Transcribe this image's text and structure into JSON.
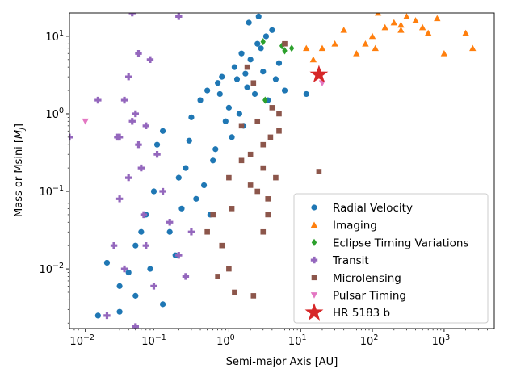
{
  "chart_data": {
    "type": "scatter",
    "xlabel": "Semi-major Axis [AU]",
    "ylabel": "Mass or Msini [",
    "ylabel_unit": "M",
    "ylabel_sub": "J",
    "ylabel_close": "]",
    "x_scale": "log",
    "y_scale": "log",
    "xlim": [
      0.006,
      5000
    ],
    "ylim": [
      0.0017,
      20
    ],
    "x_ticks": [
      {
        "exp": "−2",
        "value": 0.01
      },
      {
        "exp": "−1",
        "value": 0.1
      },
      {
        "exp": "0",
        "value": 1
      },
      {
        "exp": "1",
        "value": 10
      },
      {
        "exp": "2",
        "value": 100
      },
      {
        "exp": "3",
        "value": 1000
      }
    ],
    "y_ticks": [
      {
        "exp": "−2",
        "value": 0.01
      },
      {
        "exp": "−1",
        "value": 0.1
      },
      {
        "exp": "0",
        "value": 1
      },
      {
        "exp": "1",
        "value": 10
      }
    ],
    "tick_base": "10",
    "legend_position": "lower right",
    "series": [
      {
        "name": "Radial Velocity",
        "marker": "circle",
        "color": "#1f77b4",
        "points": [
          [
            0.015,
            0.0025
          ],
          [
            0.02,
            0.012
          ],
          [
            0.03,
            0.006
          ],
          [
            0.04,
            0.009
          ],
          [
            0.05,
            0.02
          ],
          [
            0.06,
            0.03
          ],
          [
            0.07,
            0.05
          ],
          [
            0.1,
            0.4
          ],
          [
            0.12,
            0.6
          ],
          [
            0.2,
            0.15
          ],
          [
            0.25,
            0.2
          ],
          [
            0.3,
            0.9
          ],
          [
            0.4,
            1.5
          ],
          [
            0.5,
            2.0
          ],
          [
            0.6,
            0.25
          ],
          [
            0.7,
            2.5
          ],
          [
            0.8,
            3.0
          ],
          [
            1.0,
            1.2
          ],
          [
            1.2,
            4.0
          ],
          [
            1.5,
            6.0
          ],
          [
            1.8,
            2.2
          ],
          [
            2.0,
            5.0
          ],
          [
            2.3,
            1.8
          ],
          [
            2.5,
            8.0
          ],
          [
            3.0,
            3.5
          ],
          [
            3.5,
            1.5
          ],
          [
            4.0,
            12.0
          ],
          [
            4.5,
            2.8
          ],
          [
            5.0,
            4.5
          ],
          [
            6.0,
            2.0
          ],
          [
            0.9,
            0.8
          ],
          [
            1.1,
            0.5
          ],
          [
            1.4,
            1.0
          ],
          [
            1.6,
            0.7
          ],
          [
            0.35,
            0.08
          ],
          [
            0.45,
            0.12
          ],
          [
            0.55,
            0.05
          ],
          [
            0.15,
            0.03
          ],
          [
            0.18,
            0.015
          ],
          [
            0.08,
            0.01
          ],
          [
            0.09,
            0.1
          ],
          [
            0.22,
            0.06
          ],
          [
            1.3,
            2.8
          ],
          [
            1.7,
            3.3
          ],
          [
            2.8,
            7.0
          ],
          [
            3.3,
            10.0
          ],
          [
            0.65,
            0.35
          ],
          [
            0.75,
            1.8
          ],
          [
            12.0,
            1.8
          ],
          [
            1.9,
            15.0
          ],
          [
            2.6,
            18.0
          ],
          [
            0.28,
            0.45
          ],
          [
            0.12,
            0.0035
          ],
          [
            0.05,
            0.0045
          ],
          [
            0.03,
            0.0028
          ]
        ]
      },
      {
        "name": "Imaging",
        "marker": "triangle-up",
        "color": "#ff7f0e",
        "points": [
          [
            12,
            7.0
          ],
          [
            15,
            5.0
          ],
          [
            20,
            7.0
          ],
          [
            30,
            8.0
          ],
          [
            40,
            12
          ],
          [
            60,
            6.0
          ],
          [
            80,
            8.0
          ],
          [
            100,
            10
          ],
          [
            120,
            20
          ],
          [
            150,
            13
          ],
          [
            200,
            15
          ],
          [
            250,
            12
          ],
          [
            300,
            18
          ],
          [
            400,
            16
          ],
          [
            500,
            13
          ],
          [
            600,
            11
          ],
          [
            800,
            17
          ],
          [
            1000,
            6.0
          ],
          [
            2000,
            11
          ],
          [
            2500,
            7.0
          ],
          [
            110,
            7.0
          ],
          [
            250,
            14
          ]
        ]
      },
      {
        "name": "Eclipse Timing Variations",
        "marker": "diamond",
        "color": "#2ca02c",
        "points": [
          [
            3.0,
            8.5
          ],
          [
            5.5,
            7.5
          ],
          [
            6.0,
            6.5
          ],
          [
            7.5,
            7.0
          ],
          [
            3.2,
            1.5
          ]
        ]
      },
      {
        "name": "Transit",
        "marker": "plus",
        "color": "#9467bd",
        "points": [
          [
            0.006,
            0.5
          ],
          [
            0.015,
            1.5
          ],
          [
            0.02,
            0.0025
          ],
          [
            0.025,
            0.02
          ],
          [
            0.03,
            0.5
          ],
          [
            0.035,
            1.5
          ],
          [
            0.04,
            3.0
          ],
          [
            0.045,
            0.8
          ],
          [
            0.05,
            1.0
          ],
          [
            0.055,
            0.4
          ],
          [
            0.06,
            0.2
          ],
          [
            0.065,
            0.05
          ],
          [
            0.07,
            0.02
          ],
          [
            0.08,
            5.0
          ],
          [
            0.035,
            0.01
          ],
          [
            0.1,
            0.3
          ],
          [
            0.12,
            0.1
          ],
          [
            0.15,
            0.04
          ],
          [
            0.2,
            0.015
          ],
          [
            0.25,
            0.008
          ],
          [
            0.3,
            0.03
          ],
          [
            0.045,
            20
          ],
          [
            0.2,
            18
          ],
          [
            0.05,
            0.0018
          ],
          [
            0.055,
            6.0
          ],
          [
            0.04,
            0.15
          ],
          [
            0.03,
            0.08
          ],
          [
            0.028,
            0.5
          ],
          [
            0.07,
            0.7
          ],
          [
            0.09,
            0.006
          ]
        ]
      },
      {
        "name": "Microlensing",
        "marker": "square",
        "color": "#8c564b",
        "points": [
          [
            0.5,
            0.03
          ],
          [
            0.6,
            0.05
          ],
          [
            0.8,
            0.02
          ],
          [
            1.0,
            0.01
          ],
          [
            1.2,
            0.005
          ],
          [
            1.5,
            0.25
          ],
          [
            2.0,
            0.3
          ],
          [
            2.5,
            0.1
          ],
          [
            3.0,
            0.4
          ],
          [
            3.5,
            0.05
          ],
          [
            4.0,
            1.2
          ],
          [
            5.0,
            1.0
          ],
          [
            4.5,
            0.15
          ],
          [
            3.0,
            0.03
          ],
          [
            2.5,
            0.8
          ],
          [
            3.5,
            0.08
          ],
          [
            6.0,
            8.0
          ],
          [
            5.0,
            0.6
          ],
          [
            2.0,
            0.12
          ],
          [
            1.8,
            4.0
          ],
          [
            2.2,
            2.5
          ],
          [
            3.8,
            0.5
          ],
          [
            18,
            0.18
          ],
          [
            1.5,
            0.7
          ],
          [
            3.0,
            0.2
          ],
          [
            0.7,
            0.008
          ],
          [
            2.2,
            0.0045
          ],
          [
            1.0,
            0.15
          ],
          [
            1.1,
            0.06
          ]
        ]
      },
      {
        "name": "Pulsar Timing",
        "marker": "triangle-down",
        "color": "#e377c2",
        "points": [
          [
            0.01,
            0.8
          ],
          [
            20,
            2.5
          ]
        ]
      },
      {
        "name": "HR 5183 b",
        "marker": "star",
        "color": "#d62728",
        "points": [
          [
            18,
            3.2
          ]
        ]
      }
    ]
  }
}
